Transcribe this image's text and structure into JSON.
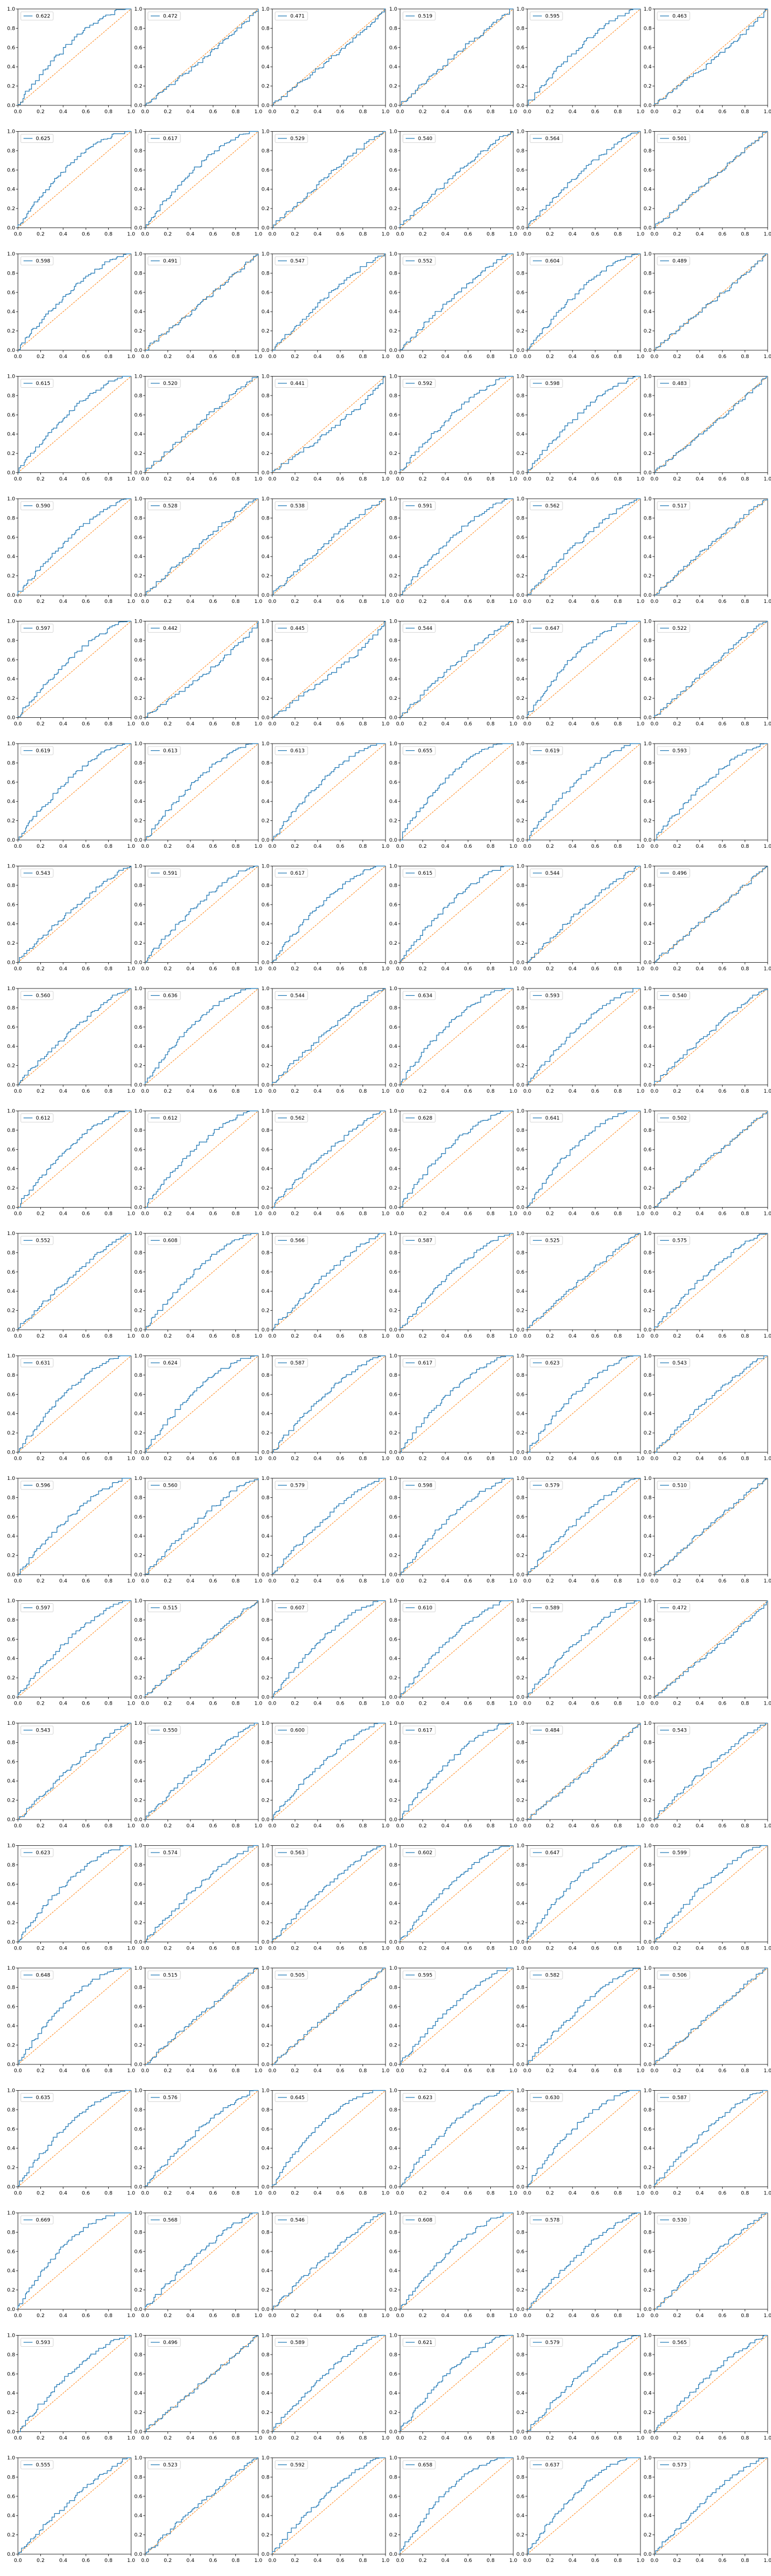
{
  "figure": {
    "rows": 21,
    "cols": 6,
    "colors": {
      "series": "#1f77b4",
      "diagonal": "#ff7f0e",
      "axes": "#000000",
      "background": "#ffffff"
    }
  },
  "chart_data": {
    "type": "line",
    "description_of_panels": "ROC-style curves, one per panel, with a dashed diagonal reference line",
    "xlim": [
      0,
      1
    ],
    "ylim": [
      0,
      1
    ],
    "x_ticks": [
      "0.0",
      "0.2",
      "0.4",
      "0.6",
      "0.8",
      "1.0"
    ],
    "y_ticks": [
      "0.0",
      "0.2",
      "0.4",
      "0.6",
      "0.8",
      "1.0"
    ],
    "legend_position": "upper left",
    "grid": false,
    "panel_legend_values": [
      [
        "0.622",
        "0.472",
        "0.471",
        "0.519",
        "0.595",
        "0.463"
      ],
      [
        "0.625",
        "0.617",
        "0.529",
        "0.540",
        "0.564",
        "0.501"
      ],
      [
        "0.598",
        "0.491",
        "0.547",
        "0.552",
        "0.604",
        "0.489"
      ],
      [
        "0.615",
        "0.520",
        "0.441",
        "0.592",
        "0.598",
        "0.483"
      ],
      [
        "0.590",
        "0.528",
        "0.538",
        "0.591",
        "0.562",
        "0.517"
      ],
      [
        "0.597",
        "0.442",
        "0.445",
        "0.544",
        "0.647",
        "0.522"
      ],
      [
        "0.619",
        "0.613",
        "0.613",
        "0.655",
        "0.619",
        "0.593"
      ],
      [
        "0.543",
        "0.591",
        "0.617",
        "0.615",
        "0.544",
        "0.496"
      ],
      [
        "0.560",
        "0.636",
        "0.544",
        "0.634",
        "0.593",
        "0.540"
      ],
      [
        "0.612",
        "0.612",
        "0.562",
        "0.628",
        "0.641",
        "0.502"
      ],
      [
        "0.552",
        "0.608",
        "0.566",
        "0.587",
        "0.525",
        "0.575"
      ],
      [
        "0.631",
        "0.624",
        "0.587",
        "0.617",
        "0.623",
        "0.543"
      ],
      [
        "0.596",
        "0.560",
        "0.579",
        "0.598",
        "0.579",
        "0.510"
      ],
      [
        "0.597",
        "0.515",
        "0.607",
        "0.610",
        "0.589",
        "0.472"
      ],
      [
        "0.543",
        "0.550",
        "0.600",
        "0.617",
        "0.484",
        "0.543"
      ],
      [
        "0.623",
        "0.574",
        "0.563",
        "0.602",
        "0.647",
        "0.599"
      ],
      [
        "0.648",
        "0.515",
        "0.505",
        "0.595",
        "0.582",
        "0.506"
      ],
      [
        "0.635",
        "0.576",
        "0.645",
        "0.623",
        "0.630",
        "0.587"
      ],
      [
        "0.669",
        "0.568",
        "0.546",
        "0.608",
        "0.578",
        "0.530"
      ],
      [
        "0.593",
        "0.496",
        "0.589",
        "0.621",
        "0.579",
        "0.565"
      ],
      [
        "0.555",
        "0.523",
        "0.592",
        "0.658",
        "0.637",
        "0.573"
      ]
    ]
  }
}
